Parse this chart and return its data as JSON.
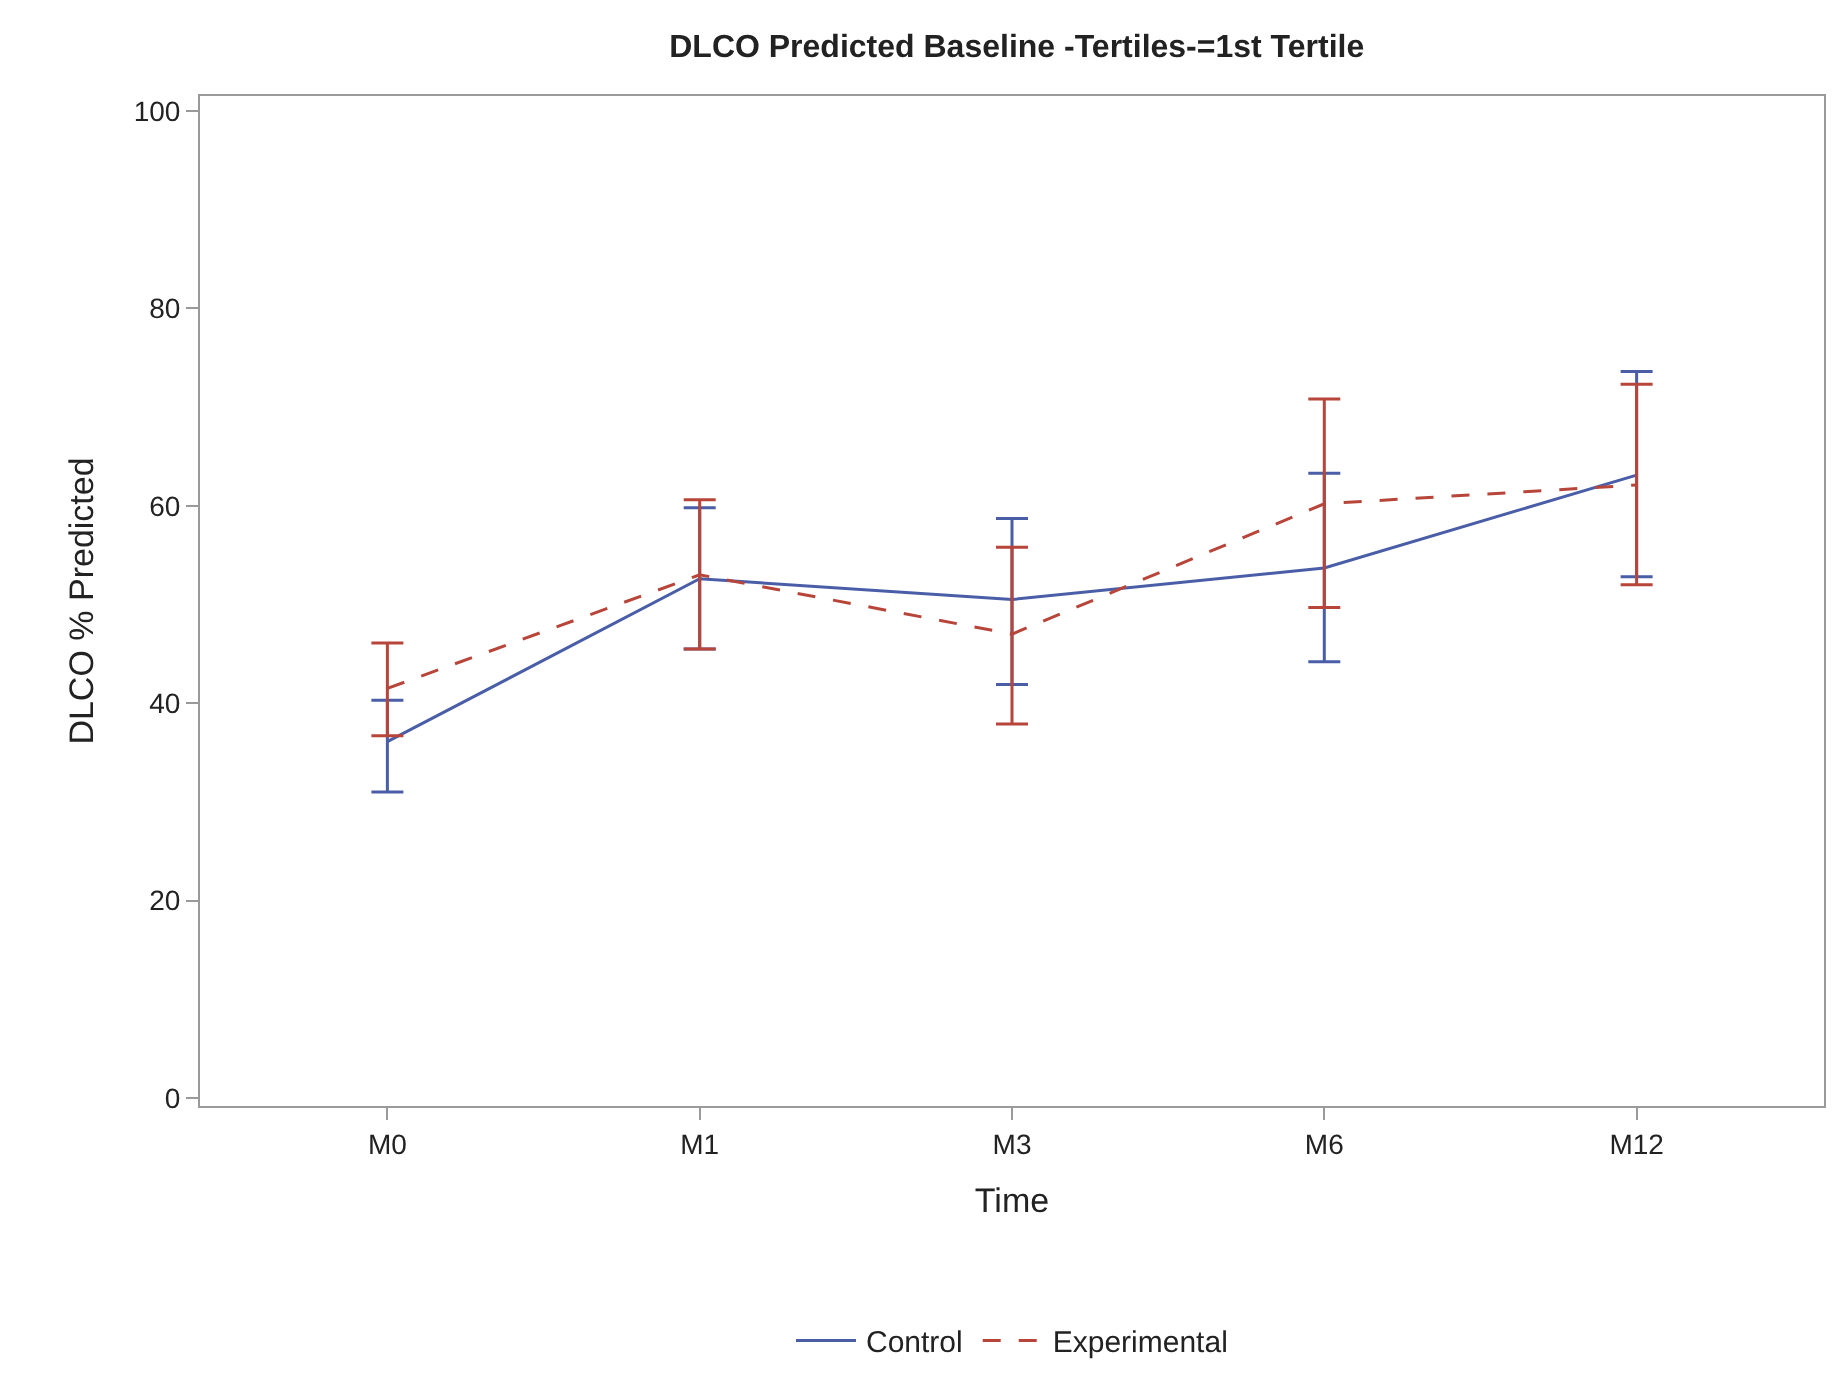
{
  "chart_data": {
    "type": "line",
    "title": "DLCO Predicted Baseline -Tertiles-=1st Tertile",
    "xlabel": "Time",
    "ylabel": "DLCO % Predicted",
    "categories": [
      "M0",
      "M1",
      "M3",
      "M6",
      "M12"
    ],
    "ylim": [
      -0.8,
      101.5
    ],
    "yticks": [
      0,
      20,
      40,
      60,
      80,
      100
    ],
    "series": [
      {
        "name": "Control",
        "color": "#4a5ea8",
        "line_style": "solid",
        "values": [
          36.1,
          52.6,
          50.5,
          53.7,
          63.1
        ],
        "errors": [
          [
            31.0,
            40.3
          ],
          [
            45.5,
            59.8
          ],
          [
            41.9,
            58.7
          ],
          [
            44.2,
            63.3
          ],
          [
            52.8,
            73.6
          ]
        ]
      },
      {
        "name": "Experimental",
        "color": "#b8453a",
        "line_style": "dashed",
        "values": [
          41.5,
          53.0,
          47.0,
          60.2,
          62.1
        ],
        "errors": [
          [
            36.7,
            46.1
          ],
          [
            45.5,
            60.6
          ],
          [
            37.9,
            55.8
          ],
          [
            49.7,
            70.8
          ],
          [
            52.0,
            72.3
          ]
        ]
      }
    ],
    "legend": "bottom",
    "marker": "none"
  }
}
